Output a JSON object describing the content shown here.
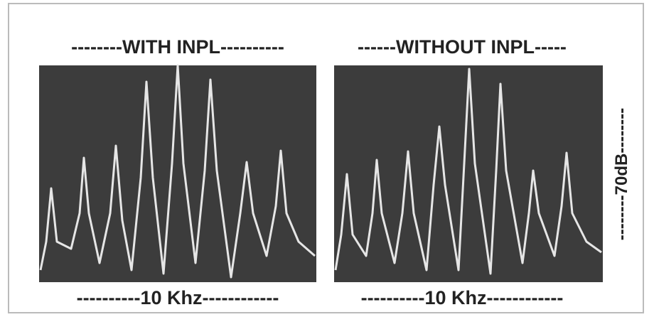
{
  "left_panel": {
    "title": "--------WITH INPL----------",
    "x_label": "----------10 Khz------------"
  },
  "right_panel": {
    "title": "------WITHOUT INPL-----",
    "x_label": "----------10 Khz------------"
  },
  "y_label": "--------70dB--------"
}
